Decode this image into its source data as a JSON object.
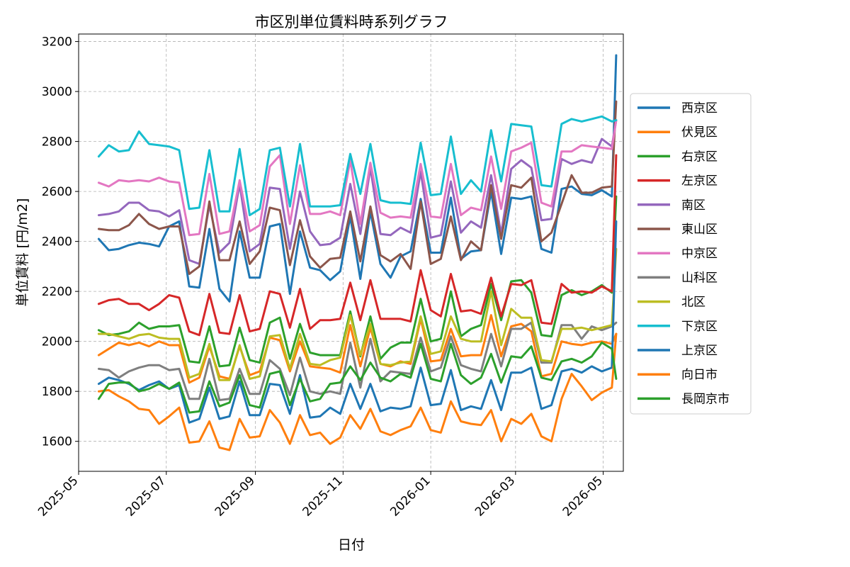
{
  "chart_data": {
    "type": "line",
    "title": "市区別単位賃料時系列グラフ",
    "xlabel": "日付",
    "ylabel": "単位賃料 [円/m2]",
    "ylim": [
      1480,
      3230
    ],
    "xlim": [
      "2025-05-01",
      "2026-05-15"
    ],
    "grid": true,
    "legend_position": "right",
    "x_ticks": [
      "2025-05",
      "2025-07",
      "2025-09",
      "2025-11",
      "2026-01",
      "2026-03",
      "2026-05"
    ],
    "y_ticks": [
      1600,
      1800,
      2000,
      2200,
      2400,
      2600,
      2800,
      3000,
      3200
    ],
    "x": [
      "2025-05-15",
      "2025-05-22",
      "2025-05-29",
      "2025-06-05",
      "2025-06-12",
      "2025-06-19",
      "2025-06-26",
      "2025-07-03",
      "2025-07-10",
      "2025-07-17",
      "2025-07-24",
      "2025-07-31",
      "2025-08-07",
      "2025-08-14",
      "2025-08-21",
      "2025-08-28",
      "2025-09-04",
      "2025-09-11",
      "2025-09-18",
      "2025-09-25",
      "2025-10-02",
      "2025-10-09",
      "2025-10-16",
      "2025-10-23",
      "2025-10-30",
      "2025-11-06",
      "2025-11-13",
      "2025-11-20",
      "2025-11-27",
      "2025-12-04",
      "2025-12-11",
      "2025-12-18",
      "2025-12-25",
      "2026-01-01",
      "2026-01-08",
      "2026-01-15",
      "2026-01-22",
      "2026-01-29",
      "2026-02-05",
      "2026-02-12",
      "2026-02-19",
      "2026-02-26",
      "2026-03-05",
      "2026-03-12",
      "2026-03-19",
      "2026-03-26",
      "2026-04-02",
      "2026-04-09",
      "2026-04-16",
      "2026-04-23",
      "2026-04-30",
      "2026-05-07",
      "2026-05-10"
    ],
    "series": [
      {
        "name": "西京区",
        "color": "#1f77b4",
        "values": [
          2410,
          2365,
          2370,
          2385,
          2395,
          2390,
          2380,
          2460,
          2480,
          2220,
          2215,
          2450,
          2210,
          2160,
          2440,
          2255,
          2255,
          2460,
          2470,
          2190,
          2440,
          2295,
          2285,
          2245,
          2280,
          2500,
          2250,
          2520,
          2310,
          2255,
          2340,
          2360,
          2570,
          2355,
          2355,
          2575,
          2330,
          2360,
          2365,
          2600,
          2350,
          2575,
          2570,
          2580,
          2370,
          2355,
          2610,
          2620,
          2590,
          2585,
          2605,
          2580,
          3145
        ]
      },
      {
        "name": "伏見区",
        "color": "#ff7f0e",
        "values": [
          1945,
          1970,
          1995,
          1985,
          1995,
          1980,
          2000,
          1985,
          1985,
          1835,
          1855,
          1980,
          1860,
          1850,
          1980,
          1865,
          1880,
          2015,
          2005,
          1880,
          2000,
          1900,
          1895,
          1890,
          1875,
          2065,
          1900,
          2055,
          1910,
          1900,
          1920,
          1910,
          2090,
          1920,
          1925,
          2050,
          1940,
          1945,
          1945,
          2105,
          1940,
          2060,
          2070,
          2040,
          1860,
          1870,
          2000,
          1990,
          1985,
          1995,
          2000,
          1990,
          2030
        ]
      },
      {
        "name": "右京区",
        "color": "#2ca02c",
        "values": [
          2045,
          2025,
          2030,
          2040,
          2075,
          2050,
          2060,
          2060,
          2065,
          1920,
          1915,
          2060,
          1900,
          1905,
          2055,
          1925,
          1915,
          2075,
          2095,
          1930,
          2070,
          1955,
          1945,
          1945,
          1945,
          2120,
          1940,
          2100,
          1930,
          1975,
          1995,
          1995,
          2170,
          2000,
          2010,
          2200,
          2020,
          2050,
          2065,
          2230,
          2085,
          2240,
          2245,
          2195,
          2025,
          2020,
          2185,
          2205,
          2185,
          2200,
          2225,
          2195,
          2580
        ]
      },
      {
        "name": "左京区",
        "color": "#d62728",
        "values": [
          2150,
          2165,
          2170,
          2150,
          2150,
          2125,
          2150,
          2185,
          2175,
          2040,
          2025,
          2190,
          2035,
          2030,
          2185,
          2040,
          2050,
          2200,
          2190,
          2055,
          2210,
          2050,
          2085,
          2085,
          2090,
          2235,
          2085,
          2245,
          2090,
          2090,
          2090,
          2080,
          2285,
          2125,
          2100,
          2270,
          2120,
          2125,
          2110,
          2255,
          2100,
          2230,
          2225,
          2245,
          2075,
          2070,
          2230,
          2195,
          2200,
          2195,
          2220,
          2200,
          2745
        ]
      },
      {
        "name": "南区",
        "color": "#9467bd",
        "values": [
          2505,
          2510,
          2520,
          2555,
          2555,
          2525,
          2520,
          2500,
          2525,
          2325,
          2310,
          2545,
          2355,
          2395,
          2630,
          2360,
          2390,
          2615,
          2610,
          2370,
          2600,
          2440,
          2385,
          2390,
          2415,
          2630,
          2430,
          2695,
          2430,
          2425,
          2455,
          2435,
          2680,
          2415,
          2425,
          2640,
          2435,
          2480,
          2455,
          2665,
          2430,
          2690,
          2725,
          2695,
          2485,
          2490,
          2730,
          2710,
          2725,
          2715,
          2810,
          2780,
          2885
        ]
      },
      {
        "name": "東山区",
        "color": "#8c564b",
        "values": [
          2450,
          2445,
          2445,
          2465,
          2510,
          2470,
          2450,
          2460,
          2460,
          2270,
          2300,
          2560,
          2325,
          2325,
          2480,
          2310,
          2360,
          2535,
          2525,
          2305,
          2485,
          2340,
          2295,
          2330,
          2335,
          2520,
          2320,
          2540,
          2345,
          2320,
          2350,
          2290,
          2560,
          2310,
          2330,
          2500,
          2325,
          2400,
          2365,
          2625,
          2410,
          2625,
          2615,
          2655,
          2400,
          2435,
          2550,
          2665,
          2595,
          2595,
          2615,
          2620,
          2960
        ]
      },
      {
        "name": "中京区",
        "color": "#e377c2",
        "values": [
          2635,
          2620,
          2645,
          2640,
          2645,
          2640,
          2655,
          2640,
          2635,
          2425,
          2430,
          2670,
          2430,
          2440,
          2645,
          2440,
          2465,
          2700,
          2745,
          2470,
          2705,
          2510,
          2510,
          2520,
          2505,
          2725,
          2470,
          2715,
          2515,
          2495,
          2500,
          2495,
          2710,
          2500,
          2495,
          2710,
          2505,
          2535,
          2525,
          2740,
          2530,
          2760,
          2775,
          2795,
          2555,
          2540,
          2760,
          2760,
          2785,
          2780,
          2775,
          2770,
          2885
        ]
      },
      {
        "name": "山科区",
        "color": "#7f7f7f",
        "values": [
          1890,
          1885,
          1855,
          1880,
          1895,
          1905,
          1905,
          1885,
          1890,
          1770,
          1770,
          1930,
          1765,
          1770,
          1890,
          1790,
          1790,
          1925,
          1890,
          1785,
          1935,
          1800,
          1790,
          1800,
          1790,
          1995,
          1815,
          2010,
          1840,
          1880,
          1875,
          1870,
          2015,
          1880,
          1895,
          2020,
          1905,
          1890,
          1880,
          2030,
          1900,
          2050,
          2050,
          2075,
          1915,
          1915,
          2065,
          2065,
          2010,
          2060,
          2045,
          2060,
          2075
        ]
      },
      {
        "name": "北区",
        "color": "#bcbd22",
        "values": [
          2030,
          2030,
          2020,
          2010,
          2025,
          2030,
          2015,
          2010,
          2010,
          1855,
          1870,
          1990,
          1845,
          1845,
          1985,
          1850,
          1860,
          2020,
          2025,
          1890,
          2030,
          1910,
          1905,
          1925,
          1935,
          2105,
          1945,
          2070,
          1910,
          1905,
          1915,
          1920,
          2100,
          1950,
          1960,
          2100,
          2010,
          2000,
          2000,
          2200,
          1985,
          2130,
          2095,
          2095,
          1925,
          1920,
          2050,
          2050,
          2055,
          2045,
          2055,
          2065,
          2370
        ]
      },
      {
        "name": "下京区",
        "color": "#17becf",
        "values": [
          2740,
          2785,
          2760,
          2765,
          2840,
          2790,
          2785,
          2780,
          2765,
          2530,
          2535,
          2765,
          2520,
          2520,
          2770,
          2505,
          2530,
          2765,
          2775,
          2540,
          2790,
          2540,
          2540,
          2540,
          2545,
          2750,
          2590,
          2790,
          2565,
          2555,
          2555,
          2550,
          2795,
          2585,
          2590,
          2820,
          2590,
          2645,
          2600,
          2845,
          2640,
          2870,
          2865,
          2860,
          2625,
          2620,
          2870,
          2890,
          2880,
          2890,
          2900,
          2880,
          2885
        ]
      },
      {
        "name": "上京区",
        "color": "#1f77b4",
        "values": [
          1830,
          1855,
          1845,
          1830,
          1805,
          1825,
          1840,
          1810,
          1825,
          1675,
          1690,
          1815,
          1690,
          1700,
          1840,
          1705,
          1705,
          1830,
          1825,
          1710,
          1865,
          1695,
          1700,
          1735,
          1710,
          1830,
          1730,
          1830,
          1720,
          1735,
          1730,
          1740,
          1895,
          1745,
          1750,
          1885,
          1725,
          1740,
          1730,
          1845,
          1725,
          1875,
          1875,
          1895,
          1730,
          1745,
          1880,
          1890,
          1875,
          1900,
          1880,
          1895,
          2480
        ]
      },
      {
        "name": "向日市",
        "color": "#ff7f0e",
        "values": [
          1800,
          1805,
          1780,
          1760,
          1730,
          1725,
          1670,
          1700,
          1735,
          1595,
          1600,
          1680,
          1575,
          1565,
          1690,
          1615,
          1620,
          1725,
          1675,
          1590,
          1705,
          1625,
          1635,
          1590,
          1615,
          1705,
          1650,
          1730,
          1640,
          1625,
          1645,
          1660,
          1735,
          1645,
          1635,
          1760,
          1680,
          1670,
          1665,
          1725,
          1600,
          1690,
          1670,
          1710,
          1620,
          1600,
          1770,
          1870,
          1820,
          1765,
          1795,
          1815,
          2030
        ]
      },
      {
        "name": "長岡京市",
        "color": "#2ca02c",
        "values": [
          1770,
          1830,
          1835,
          1835,
          1800,
          1810,
          1830,
          1810,
          1835,
          1715,
          1720,
          1840,
          1740,
          1755,
          1865,
          1745,
          1735,
          1870,
          1880,
          1745,
          1850,
          1760,
          1770,
          1830,
          1835,
          1900,
          1845,
          1915,
          1855,
          1840,
          1870,
          1855,
          1990,
          1850,
          1840,
          1990,
          1865,
          1830,
          1855,
          1950,
          1835,
          1940,
          1935,
          1980,
          1855,
          1845,
          1920,
          1930,
          1915,
          1940,
          1995,
          1970,
          1850
        ]
      }
    ]
  }
}
